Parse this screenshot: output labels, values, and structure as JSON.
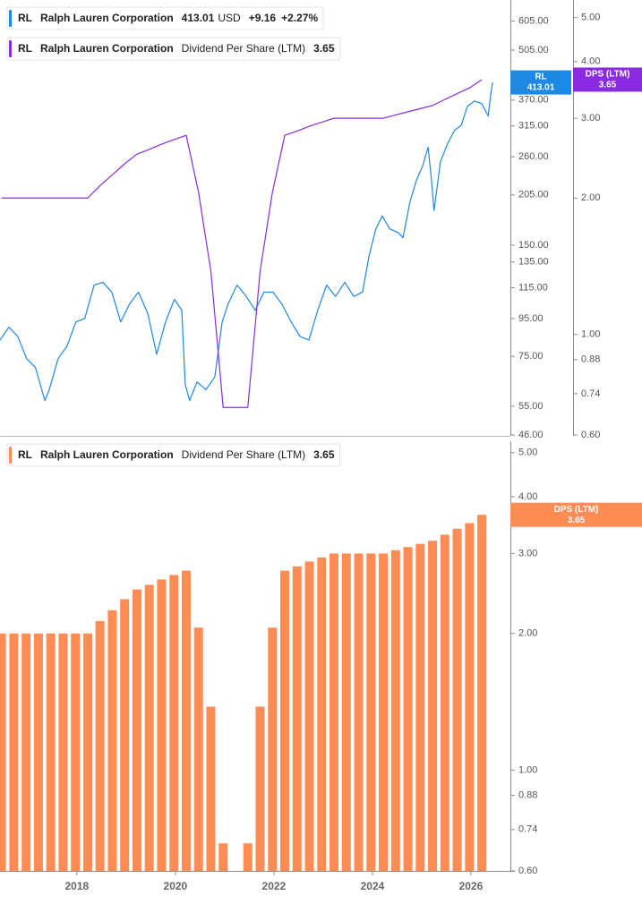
{
  "chart_data": [
    {
      "type": "line",
      "xlim": [
        2016.44,
        2026.8
      ],
      "ylim": [
        46,
        690
      ],
      "yticks": [
        {
          "value": 605,
          "label": "605.00"
        },
        {
          "value": 505,
          "label": "505.00"
        },
        {
          "value": 370,
          "label": "370.00"
        },
        {
          "value": 315,
          "label": "315.00"
        },
        {
          "value": 260,
          "label": "260.00"
        },
        {
          "value": 205,
          "label": "205.00"
        },
        {
          "value": 150,
          "label": "150.00"
        },
        {
          "value": 135,
          "label": "135.00"
        },
        {
          "value": 115,
          "label": "115.00"
        },
        {
          "value": 95,
          "label": "95.00"
        },
        {
          "value": 75,
          "label": "75.00"
        },
        {
          "value": 55,
          "label": "55.00"
        },
        {
          "value": 46,
          "label": "46.00"
        }
      ],
      "y2lim": [
        0.6,
        5.47
      ],
      "y2ticks": [
        {
          "value": 5,
          "label": "5.00"
        },
        {
          "value": 4,
          "label": "4.00"
        },
        {
          "value": 3,
          "label": "3.00"
        },
        {
          "value": 2,
          "label": "2.00"
        },
        {
          "value": 1,
          "label": "1.00"
        },
        0.88,
        0.74,
        {
          "value": 0.6,
          "label": "0.60"
        }
      ],
      "log_scale": true,
      "series": [
        {
          "ticker": "RL",
          "name": "Ralph Lauren Corporation",
          "currency": "USD",
          "change": "+9.16",
          "change_pct": "+2.27%",
          "color": "#1e88e5",
          "axis": "y",
          "x": [
            2016.44,
            2016.62,
            2016.8,
            2016.98,
            2017.16,
            2017.35,
            2017.44,
            2017.62,
            2017.8,
            2017.98,
            2018.16,
            2018.35,
            2018.53,
            2018.71,
            2018.89,
            2019.07,
            2019.25,
            2019.44,
            2019.62,
            2019.8,
            2019.98,
            2020.13,
            2020.2,
            2020.29,
            2020.44,
            2020.62,
            2020.8,
            2020.95,
            2021.07,
            2021.25,
            2021.44,
            2021.62,
            2021.8,
            2021.98,
            2022.16,
            2022.35,
            2022.53,
            2022.71,
            2022.89,
            2023.07,
            2023.25,
            2023.44,
            2023.62,
            2023.8,
            2023.93,
            2024.07,
            2024.2,
            2024.35,
            2024.53,
            2024.62,
            2024.76,
            2024.89,
            2025.02,
            2025.13,
            2025.2,
            2025.25,
            2025.38,
            2025.53,
            2025.67,
            2025.8,
            2025.93,
            2026.07,
            2026.22,
            2026.35,
            2026.4,
            2026.44
          ],
          "values": [
            83,
            90,
            85,
            74,
            70,
            57,
            61,
            74,
            80,
            93,
            95,
            117,
            119,
            112,
            93,
            104,
            112,
            98,
            76,
            93,
            107,
            100,
            63,
            57,
            64,
            61,
            66,
            93,
            104,
            117,
            109,
            100,
            112,
            112,
            104,
            93,
            85,
            83,
            100,
            117,
            109,
            119,
            109,
            112,
            140,
            166,
            180,
            166,
            162,
            157,
            196,
            224,
            246,
            276,
            224,
            186,
            252,
            283,
            307,
            316,
            356,
            368,
            362,
            335,
            383,
            413.01
          ]
        },
        {
          "ticker": "RL",
          "company": "Ralph Lauren Corporation",
          "name": "Dividend Per Share (LTM)",
          "tag_label": "DPS (LTM)",
          "color": "#8a2be2",
          "axis": "y2",
          "x": [
            2016.47,
            2016.72,
            2016.97,
            2017.22,
            2017.47,
            2017.72,
            2017.97,
            2018.22,
            2018.47,
            2018.72,
            2018.97,
            2019.22,
            2019.47,
            2019.72,
            2019.97,
            2020.22,
            2020.47,
            2020.72,
            2020.97,
            2021.22,
            2021.47,
            2021.72,
            2021.97,
            2022.22,
            2022.47,
            2022.72,
            2022.97,
            2023.22,
            2023.47,
            2023.72,
            2023.97,
            2024.22,
            2024.47,
            2024.72,
            2024.97,
            2025.22,
            2025.47,
            2025.72,
            2025.97,
            2026.22
          ],
          "values": [
            2.0,
            2.0,
            2.0,
            2.0,
            2.0,
            2.0,
            2.0,
            2.0,
            2.13,
            2.25,
            2.38,
            2.5,
            2.56,
            2.63,
            2.69,
            2.75,
            2.06,
            1.38,
            0.69,
            0.69,
            0.69,
            1.38,
            2.06,
            2.75,
            2.81,
            2.88,
            2.94,
            3.0,
            3.0,
            3.0,
            3.0,
            3.0,
            3.05,
            3.1,
            3.15,
            3.2,
            3.3,
            3.4,
            3.5,
            3.65
          ]
        }
      ]
    },
    {
      "type": "bar",
      "xlim": [
        2016.44,
        2026.8
      ],
      "xticks": [
        2018,
        2020,
        2022,
        2024,
        2026
      ],
      "ylim": [
        0.6,
        5.3
      ],
      "yticks": [
        {
          "value": 5,
          "label": "5.00"
        },
        {
          "value": 4,
          "label": "4.00"
        },
        {
          "value": 3,
          "label": "3.00"
        },
        {
          "value": 2,
          "label": "2.00"
        },
        {
          "value": 1,
          "label": "1.00"
        },
        0.88,
        0.74,
        {
          "value": 0.6,
          "label": "0.60"
        }
      ],
      "log_scale": true,
      "series": [
        {
          "ticker": "RL",
          "company": "Ralph Lauren Corporation",
          "name": "Dividend Per Share (LTM)",
          "tag_label": "DPS (LTM)",
          "color": "#ff8c55",
          "axis": "y",
          "x": [
            2016.47,
            2016.72,
            2016.97,
            2017.22,
            2017.47,
            2017.72,
            2017.97,
            2018.22,
            2018.47,
            2018.72,
            2018.97,
            2019.22,
            2019.47,
            2019.72,
            2019.97,
            2020.22,
            2020.47,
            2020.72,
            2020.97,
            2021.22,
            2021.47,
            2021.72,
            2021.97,
            2022.22,
            2022.47,
            2022.72,
            2022.97,
            2023.22,
            2023.47,
            2023.72,
            2023.97,
            2024.22,
            2024.47,
            2024.72,
            2024.97,
            2025.22,
            2025.47,
            2025.72,
            2025.97,
            2026.22
          ],
          "values": [
            2.0,
            2.0,
            2.0,
            2.0,
            2.0,
            2.0,
            2.0,
            2.0,
            2.13,
            2.25,
            2.38,
            2.5,
            2.56,
            2.63,
            2.69,
            2.75,
            2.06,
            1.38,
            0.69,
            null,
            0.69,
            1.38,
            2.06,
            2.75,
            2.81,
            2.88,
            2.94,
            3.0,
            3.0,
            3.0,
            3.0,
            3.0,
            3.05,
            3.1,
            3.15,
            3.2,
            3.3,
            3.4,
            3.5,
            3.65
          ]
        }
      ]
    }
  ]
}
